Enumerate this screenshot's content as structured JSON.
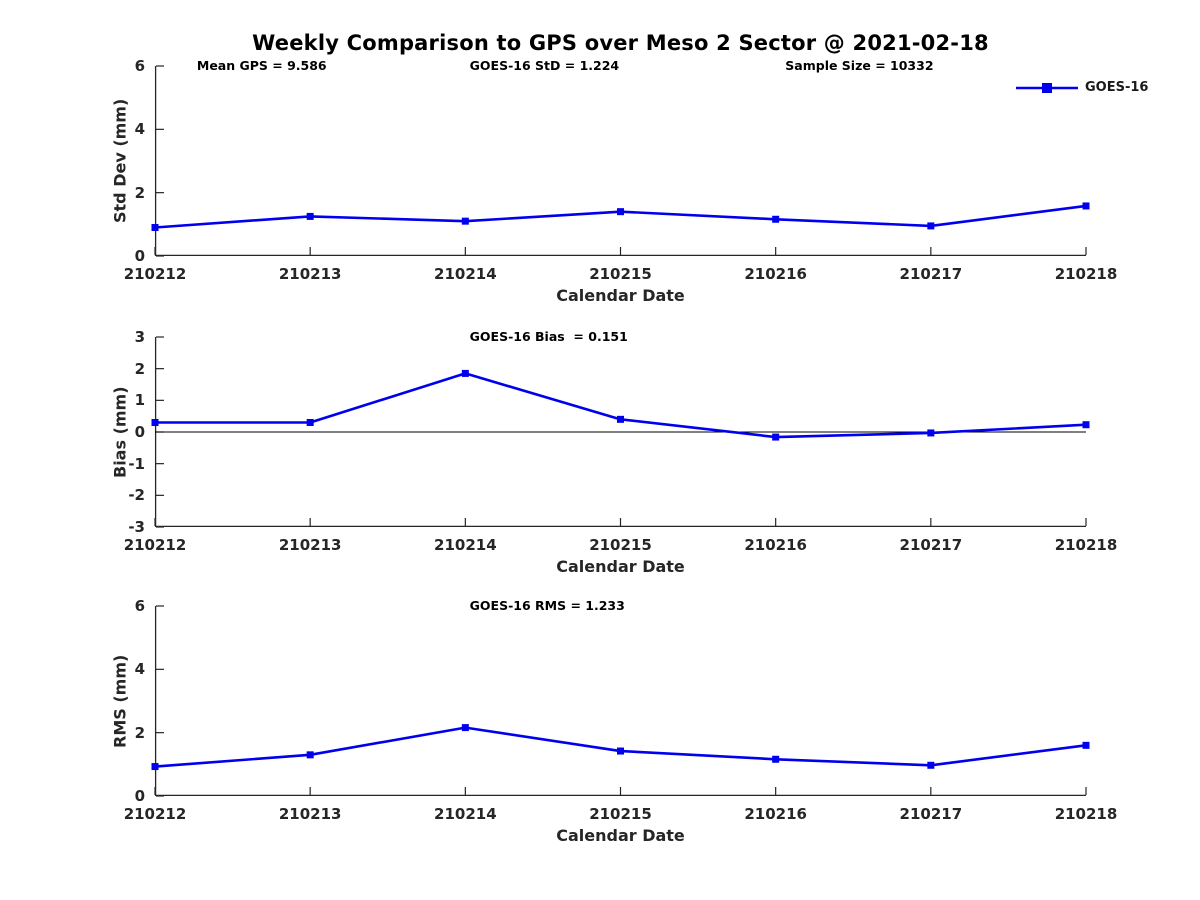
{
  "title": "Weekly Comparison to GPS over Meso 2 Sector @ 2021-02-18",
  "legend": {
    "label": "GOES-16"
  },
  "colors": {
    "line": "#0000ee",
    "axis": "#262626",
    "zero_line": "#000000",
    "annotation_text": "#000000",
    "tick_text": "#262626"
  },
  "chart_data": [
    {
      "type": "line",
      "ylabel": "Std Dev (mm)",
      "xlabel": "Calendar Date",
      "ylim": [
        0,
        6
      ],
      "yticks": [
        0,
        2,
        4,
        6
      ],
      "zero_line": false,
      "grid": false,
      "legend_position": "top-right-outside",
      "categories": [
        "210212",
        "210213",
        "210214",
        "210215",
        "210216",
        "210217",
        "210218"
      ],
      "series": [
        {
          "name": "GOES-16",
          "values": [
            0.9,
            1.25,
            1.1,
            1.4,
            1.16,
            0.95,
            1.58
          ]
        }
      ],
      "annotations": [
        {
          "text": "Mean GPS = 9.586",
          "xfrac": 0.045
        },
        {
          "text": "GOES-16 StD = 1.224",
          "xfrac": 0.338
        },
        {
          "text": "Sample Size = 10332",
          "xfrac": 0.677
        }
      ]
    },
    {
      "type": "line",
      "ylabel": "Bias (mm)",
      "xlabel": "Calendar Date",
      "ylim": [
        -3,
        3
      ],
      "yticks": [
        3,
        2,
        1,
        0,
        -1,
        -2,
        -3
      ],
      "zero_line": true,
      "grid": false,
      "categories": [
        "210212",
        "210213",
        "210214",
        "210215",
        "210216",
        "210217",
        "210218"
      ],
      "series": [
        {
          "name": "GOES-16",
          "values": [
            0.3,
            0.3,
            1.85,
            0.4,
            -0.16,
            -0.03,
            0.23
          ]
        }
      ],
      "annotations": [
        {
          "text": "GOES-16 Bias  = 0.151",
          "xfrac": 0.338
        }
      ]
    },
    {
      "type": "line",
      "ylabel": "RMS (mm)",
      "xlabel": "Calendar Date",
      "ylim": [
        0,
        6
      ],
      "yticks": [
        0,
        2,
        4,
        6
      ],
      "zero_line": false,
      "grid": false,
      "categories": [
        "210212",
        "210213",
        "210214",
        "210215",
        "210216",
        "210217",
        "210218"
      ],
      "series": [
        {
          "name": "GOES-16",
          "values": [
            0.93,
            1.3,
            2.16,
            1.42,
            1.16,
            0.97,
            1.6
          ]
        }
      ],
      "annotations": [
        {
          "text": "GOES-16 RMS = 1.233",
          "xfrac": 0.338
        }
      ]
    }
  ]
}
